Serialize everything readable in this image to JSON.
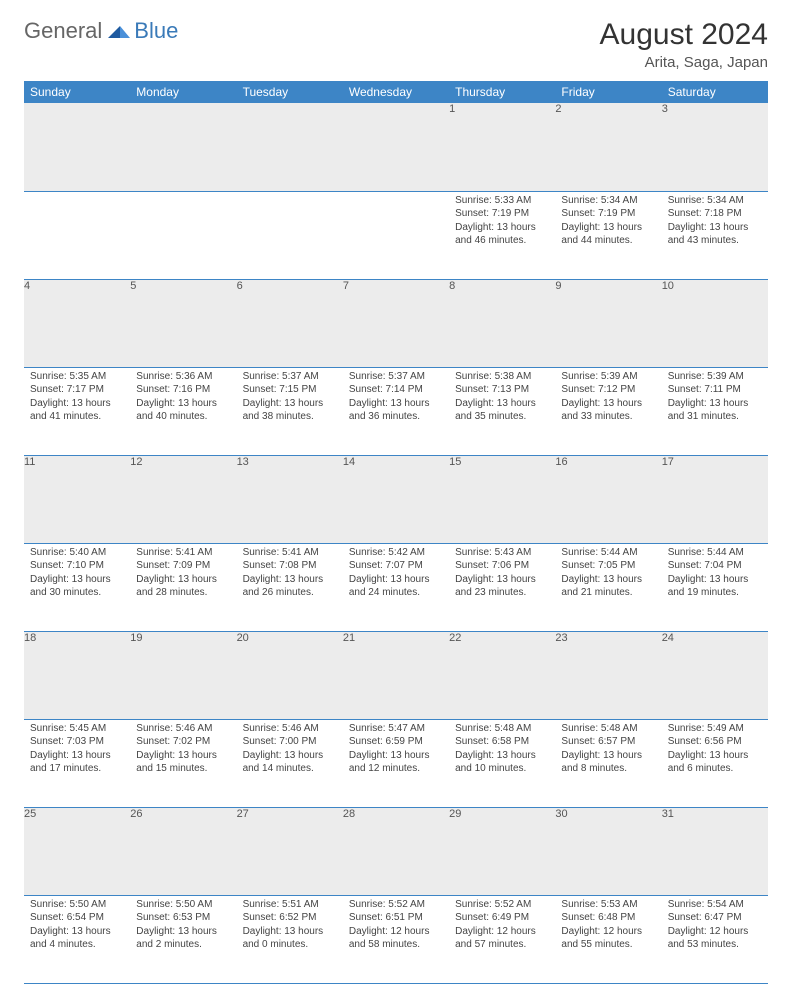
{
  "logo": {
    "text1": "General",
    "text2": "Blue"
  },
  "title": "August 2024",
  "subtitle": "Arita, Saga, Japan",
  "colors": {
    "header_bg": "#3d85c6",
    "header_fg": "#ffffff",
    "daynum_bg": "#ececec",
    "border": "#3d85c6",
    "text": "#444444"
  },
  "weekdays": [
    "Sunday",
    "Monday",
    "Tuesday",
    "Wednesday",
    "Thursday",
    "Friday",
    "Saturday"
  ],
  "weeks": [
    [
      null,
      null,
      null,
      null,
      {
        "n": "1",
        "sr": "5:33 AM",
        "ss": "7:19 PM",
        "dl": "Daylight: 13 hours and 46 minutes."
      },
      {
        "n": "2",
        "sr": "5:34 AM",
        "ss": "7:19 PM",
        "dl": "Daylight: 13 hours and 44 minutes."
      },
      {
        "n": "3",
        "sr": "5:34 AM",
        "ss": "7:18 PM",
        "dl": "Daylight: 13 hours and 43 minutes."
      }
    ],
    [
      {
        "n": "4",
        "sr": "5:35 AM",
        "ss": "7:17 PM",
        "dl": "Daylight: 13 hours and 41 minutes."
      },
      {
        "n": "5",
        "sr": "5:36 AM",
        "ss": "7:16 PM",
        "dl": "Daylight: 13 hours and 40 minutes."
      },
      {
        "n": "6",
        "sr": "5:37 AM",
        "ss": "7:15 PM",
        "dl": "Daylight: 13 hours and 38 minutes."
      },
      {
        "n": "7",
        "sr": "5:37 AM",
        "ss": "7:14 PM",
        "dl": "Daylight: 13 hours and 36 minutes."
      },
      {
        "n": "8",
        "sr": "5:38 AM",
        "ss": "7:13 PM",
        "dl": "Daylight: 13 hours and 35 minutes."
      },
      {
        "n": "9",
        "sr": "5:39 AM",
        "ss": "7:12 PM",
        "dl": "Daylight: 13 hours and 33 minutes."
      },
      {
        "n": "10",
        "sr": "5:39 AM",
        "ss": "7:11 PM",
        "dl": "Daylight: 13 hours and 31 minutes."
      }
    ],
    [
      {
        "n": "11",
        "sr": "5:40 AM",
        "ss": "7:10 PM",
        "dl": "Daylight: 13 hours and 30 minutes."
      },
      {
        "n": "12",
        "sr": "5:41 AM",
        "ss": "7:09 PM",
        "dl": "Daylight: 13 hours and 28 minutes."
      },
      {
        "n": "13",
        "sr": "5:41 AM",
        "ss": "7:08 PM",
        "dl": "Daylight: 13 hours and 26 minutes."
      },
      {
        "n": "14",
        "sr": "5:42 AM",
        "ss": "7:07 PM",
        "dl": "Daylight: 13 hours and 24 minutes."
      },
      {
        "n": "15",
        "sr": "5:43 AM",
        "ss": "7:06 PM",
        "dl": "Daylight: 13 hours and 23 minutes."
      },
      {
        "n": "16",
        "sr": "5:44 AM",
        "ss": "7:05 PM",
        "dl": "Daylight: 13 hours and 21 minutes."
      },
      {
        "n": "17",
        "sr": "5:44 AM",
        "ss": "7:04 PM",
        "dl": "Daylight: 13 hours and 19 minutes."
      }
    ],
    [
      {
        "n": "18",
        "sr": "5:45 AM",
        "ss": "7:03 PM",
        "dl": "Daylight: 13 hours and 17 minutes."
      },
      {
        "n": "19",
        "sr": "5:46 AM",
        "ss": "7:02 PM",
        "dl": "Daylight: 13 hours and 15 minutes."
      },
      {
        "n": "20",
        "sr": "5:46 AM",
        "ss": "7:00 PM",
        "dl": "Daylight: 13 hours and 14 minutes."
      },
      {
        "n": "21",
        "sr": "5:47 AM",
        "ss": "6:59 PM",
        "dl": "Daylight: 13 hours and 12 minutes."
      },
      {
        "n": "22",
        "sr": "5:48 AM",
        "ss": "6:58 PM",
        "dl": "Daylight: 13 hours and 10 minutes."
      },
      {
        "n": "23",
        "sr": "5:48 AM",
        "ss": "6:57 PM",
        "dl": "Daylight: 13 hours and 8 minutes."
      },
      {
        "n": "24",
        "sr": "5:49 AM",
        "ss": "6:56 PM",
        "dl": "Daylight: 13 hours and 6 minutes."
      }
    ],
    [
      {
        "n": "25",
        "sr": "5:50 AM",
        "ss": "6:54 PM",
        "dl": "Daylight: 13 hours and 4 minutes."
      },
      {
        "n": "26",
        "sr": "5:50 AM",
        "ss": "6:53 PM",
        "dl": "Daylight: 13 hours and 2 minutes."
      },
      {
        "n": "27",
        "sr": "5:51 AM",
        "ss": "6:52 PM",
        "dl": "Daylight: 13 hours and 0 minutes."
      },
      {
        "n": "28",
        "sr": "5:52 AM",
        "ss": "6:51 PM",
        "dl": "Daylight: 12 hours and 58 minutes."
      },
      {
        "n": "29",
        "sr": "5:52 AM",
        "ss": "6:49 PM",
        "dl": "Daylight: 12 hours and 57 minutes."
      },
      {
        "n": "30",
        "sr": "5:53 AM",
        "ss": "6:48 PM",
        "dl": "Daylight: 12 hours and 55 minutes."
      },
      {
        "n": "31",
        "sr": "5:54 AM",
        "ss": "6:47 PM",
        "dl": "Daylight: 12 hours and 53 minutes."
      }
    ]
  ]
}
